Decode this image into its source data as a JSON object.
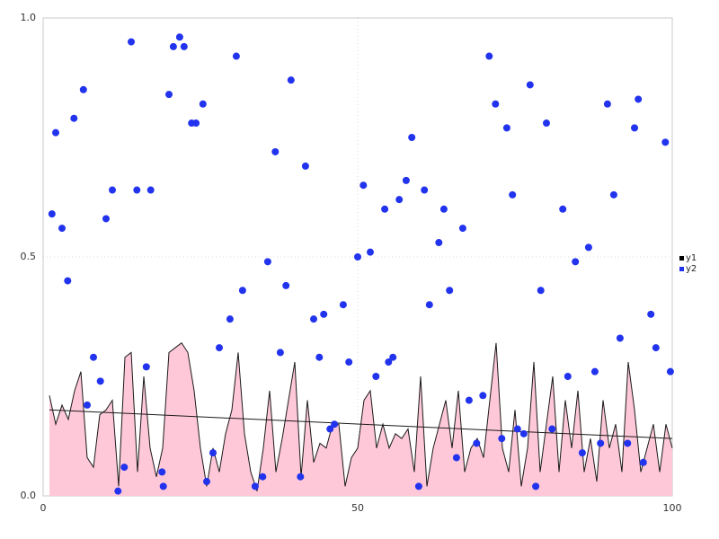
{
  "chart_data": {
    "type": "mixed",
    "title": "",
    "x_axis": {
      "range": [
        0,
        100
      ],
      "tick_values": [
        0,
        50,
        100
      ],
      "ticks": [
        "0",
        "50",
        "100"
      ]
    },
    "y_axis": {
      "range": [
        0,
        1
      ],
      "tick_values": [
        0,
        0.5,
        1.0
      ],
      "ticks": [
        "0.0",
        "0.5",
        "1.0"
      ]
    },
    "grid": true,
    "plot_border_color": "#c8c8c8",
    "grid_color": "#d9d9d9",
    "legend": {
      "position": "right-middle",
      "entries": [
        {
          "label": "y1",
          "color": "#000000"
        },
        {
          "label": "y2",
          "color": "#2233ee"
        }
      ]
    },
    "series": [
      {
        "name": "y1",
        "type": "area",
        "line_color": "#1a1a1a",
        "fill_color": "#ffc8d8",
        "x_start": 1,
        "x_step": 1,
        "values": [
          0.21,
          0.15,
          0.19,
          0.16,
          0.22,
          0.26,
          0.08,
          0.06,
          0.17,
          0.18,
          0.2,
          0.02,
          0.29,
          0.3,
          0.05,
          0.25,
          0.1,
          0.04,
          0.1,
          0.3,
          0.31,
          0.32,
          0.3,
          0.22,
          0.1,
          0.02,
          0.1,
          0.05,
          0.13,
          0.18,
          0.3,
          0.13,
          0.05,
          0.01,
          0.1,
          0.22,
          0.05,
          0.12,
          0.2,
          0.28,
          0.04,
          0.2,
          0.07,
          0.11,
          0.1,
          0.15,
          0.15,
          0.02,
          0.08,
          0.1,
          0.2,
          0.22,
          0.1,
          0.15,
          0.1,
          0.13,
          0.12,
          0.14,
          0.05,
          0.25,
          0.02,
          0.1,
          0.15,
          0.2,
          0.1,
          0.22,
          0.05,
          0.1,
          0.12,
          0.08,
          0.2,
          0.32,
          0.1,
          0.05,
          0.18,
          0.02,
          0.1,
          0.28,
          0.05,
          0.15,
          0.25,
          0.05,
          0.2,
          0.1,
          0.22,
          0.05,
          0.12,
          0.03,
          0.2,
          0.1,
          0.15,
          0.05,
          0.28,
          0.18,
          0.05,
          0.1,
          0.15,
          0.05,
          0.15,
          0.1
        ]
      },
      {
        "name": "y1-fit",
        "type": "line",
        "color": "#1a1a1a",
        "x": [
          1,
          100
        ],
        "values": [
          0.18,
          0.12
        ]
      },
      {
        "name": "y2",
        "type": "scatter",
        "color": "#2233ee",
        "marker_radius": 4,
        "points": [
          [
            1.4,
            0.59
          ],
          [
            2,
            0.76
          ],
          [
            3,
            0.56
          ],
          [
            3.9,
            0.45
          ],
          [
            4.9,
            0.79
          ],
          [
            6.4,
            0.85
          ],
          [
            7,
            0.19
          ],
          [
            8,
            0.29
          ],
          [
            9.1,
            0.24
          ],
          [
            10,
            0.58
          ],
          [
            11,
            0.64
          ],
          [
            11.9,
            0.01
          ],
          [
            12.9,
            0.06
          ],
          [
            14,
            0.95
          ],
          [
            14.9,
            0.64
          ],
          [
            16.4,
            0.27
          ],
          [
            17.1,
            0.64
          ],
          [
            18.9,
            0.05
          ],
          [
            19.1,
            0.02
          ],
          [
            20,
            0.84
          ],
          [
            20.7,
            0.94
          ],
          [
            21.7,
            0.96
          ],
          [
            22.4,
            0.94
          ],
          [
            23.6,
            0.78
          ],
          [
            24.3,
            0.78
          ],
          [
            25.4,
            0.82
          ],
          [
            26,
            0.03
          ],
          [
            27,
            0.09
          ],
          [
            28,
            0.31
          ],
          [
            29.7,
            0.37
          ],
          [
            30.7,
            0.92
          ],
          [
            31.7,
            0.43
          ],
          [
            33.7,
            0.02
          ],
          [
            34.9,
            0.04
          ],
          [
            35.7,
            0.49
          ],
          [
            36.9,
            0.72
          ],
          [
            37.7,
            0.3
          ],
          [
            38.6,
            0.44
          ],
          [
            39.4,
            0.87
          ],
          [
            40.9,
            0.04
          ],
          [
            41.7,
            0.69
          ],
          [
            43,
            0.37
          ],
          [
            43.9,
            0.29
          ],
          [
            44.6,
            0.38
          ],
          [
            45.6,
            0.14
          ],
          [
            46.3,
            0.15
          ],
          [
            47.7,
            0.4
          ],
          [
            48.6,
            0.28
          ],
          [
            50,
            0.5
          ],
          [
            50.9,
            0.65
          ],
          [
            52,
            0.51
          ],
          [
            52.9,
            0.25
          ],
          [
            54.3,
            0.6
          ],
          [
            54.9,
            0.28
          ],
          [
            55.6,
            0.29
          ],
          [
            56.6,
            0.62
          ],
          [
            57.7,
            0.66
          ],
          [
            58.6,
            0.75
          ],
          [
            59.7,
            0.02
          ],
          [
            60.6,
            0.64
          ],
          [
            61.4,
            0.4
          ],
          [
            62.9,
            0.53
          ],
          [
            63.7,
            0.6
          ],
          [
            64.6,
            0.43
          ],
          [
            65.7,
            0.08
          ],
          [
            66.7,
            0.56
          ],
          [
            67.7,
            0.2
          ],
          [
            68.9,
            0.11
          ],
          [
            69.9,
            0.21
          ],
          [
            70.9,
            0.92
          ],
          [
            71.9,
            0.82
          ],
          [
            72.9,
            0.12
          ],
          [
            73.7,
            0.77
          ],
          [
            74.6,
            0.63
          ],
          [
            75.4,
            0.14
          ],
          [
            76.4,
            0.13
          ],
          [
            77.4,
            0.86
          ],
          [
            78.3,
            0.02
          ],
          [
            79.1,
            0.43
          ],
          [
            80,
            0.78
          ],
          [
            80.9,
            0.14
          ],
          [
            82.6,
            0.6
          ],
          [
            83.4,
            0.25
          ],
          [
            84.6,
            0.49
          ],
          [
            85.7,
            0.09
          ],
          [
            86.7,
            0.52
          ],
          [
            87.7,
            0.26
          ],
          [
            88.6,
            0.11
          ],
          [
            89.7,
            0.82
          ],
          [
            90.7,
            0.63
          ],
          [
            91.7,
            0.33
          ],
          [
            92.9,
            0.11
          ],
          [
            94,
            0.77
          ],
          [
            94.6,
            0.83
          ],
          [
            95.4,
            0.07
          ],
          [
            96.6,
            0.38
          ],
          [
            97.4,
            0.31
          ],
          [
            98.9,
            0.74
          ],
          [
            99.7,
            0.26
          ]
        ]
      }
    ]
  }
}
